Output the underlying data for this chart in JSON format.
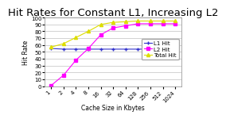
{
  "title": "Hit Rates for Constant L1, Increasing L2",
  "xlabel": "Cache Size in Kbytes",
  "ylabel": "Hit Rate",
  "x_labels": [
    "1",
    "2",
    "4",
    "8",
    "16",
    "32",
    "64",
    "128",
    "256",
    "512",
    "1024"
  ],
  "x_values": [
    0,
    1,
    2,
    3,
    4,
    5,
    6,
    7,
    8,
    9,
    10
  ],
  "l1_hit": [
    55,
    54,
    54,
    54,
    54,
    54,
    54,
    54,
    54,
    54,
    54
  ],
  "l2_hit": [
    1,
    16,
    38,
    55,
    75,
    85,
    88,
    91,
    91,
    91,
    91
  ],
  "total_hit": [
    57,
    62,
    71,
    80,
    90,
    93,
    94,
    95,
    95,
    95,
    95
  ],
  "l1_color": "#3333cc",
  "l2_color": "#ff00ff",
  "total_color": "#dddd00",
  "ylim": [
    0,
    100
  ],
  "yticks": [
    0,
    10,
    20,
    30,
    40,
    50,
    60,
    70,
    80,
    90,
    100
  ],
  "title_fontsize": 9.5,
  "axis_label_fontsize": 5.5,
  "tick_fontsize": 5,
  "legend_fontsize": 5,
  "background_color": "#ffffff",
  "grid_color": "#c0c0c0"
}
